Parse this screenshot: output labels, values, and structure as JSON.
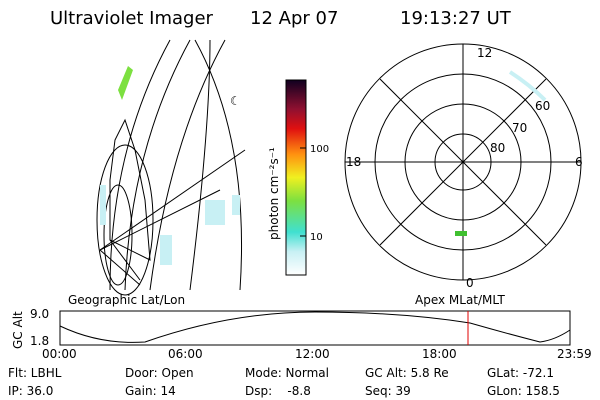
{
  "header": {
    "title": "Ultraviolet Imager",
    "date": "12 Apr 07",
    "time": "19:13:27 UT"
  },
  "colorbar": {
    "label": "photon cm⁻²s⁻¹",
    "ticks": [
      "100",
      "10"
    ]
  },
  "left_map": {
    "label": "Geographic Lat/Lon"
  },
  "polar": {
    "label": "Apex MLat/MLT",
    "mlt_labels": [
      "12",
      "18",
      "6",
      "0"
    ],
    "lat_labels": [
      "60",
      "70",
      "80"
    ]
  },
  "timeline": {
    "y_label": "GC Alt",
    "yticks": [
      "9.0",
      "1.8"
    ],
    "xticks": [
      "00:00",
      "06:00",
      "12:00",
      "18:00",
      "23:59"
    ]
  },
  "footer": {
    "rows": [
      [
        "Flt: LBHL",
        "Door: Open",
        "Mode: Normal",
        "GC Alt: 5.8 Re",
        "GLat: -72.1"
      ],
      [
        "IP: 36.0",
        "Gain: 14",
        "Dsp:    -8.8",
        "Seq: 39",
        "GLon: 158.5"
      ]
    ]
  }
}
